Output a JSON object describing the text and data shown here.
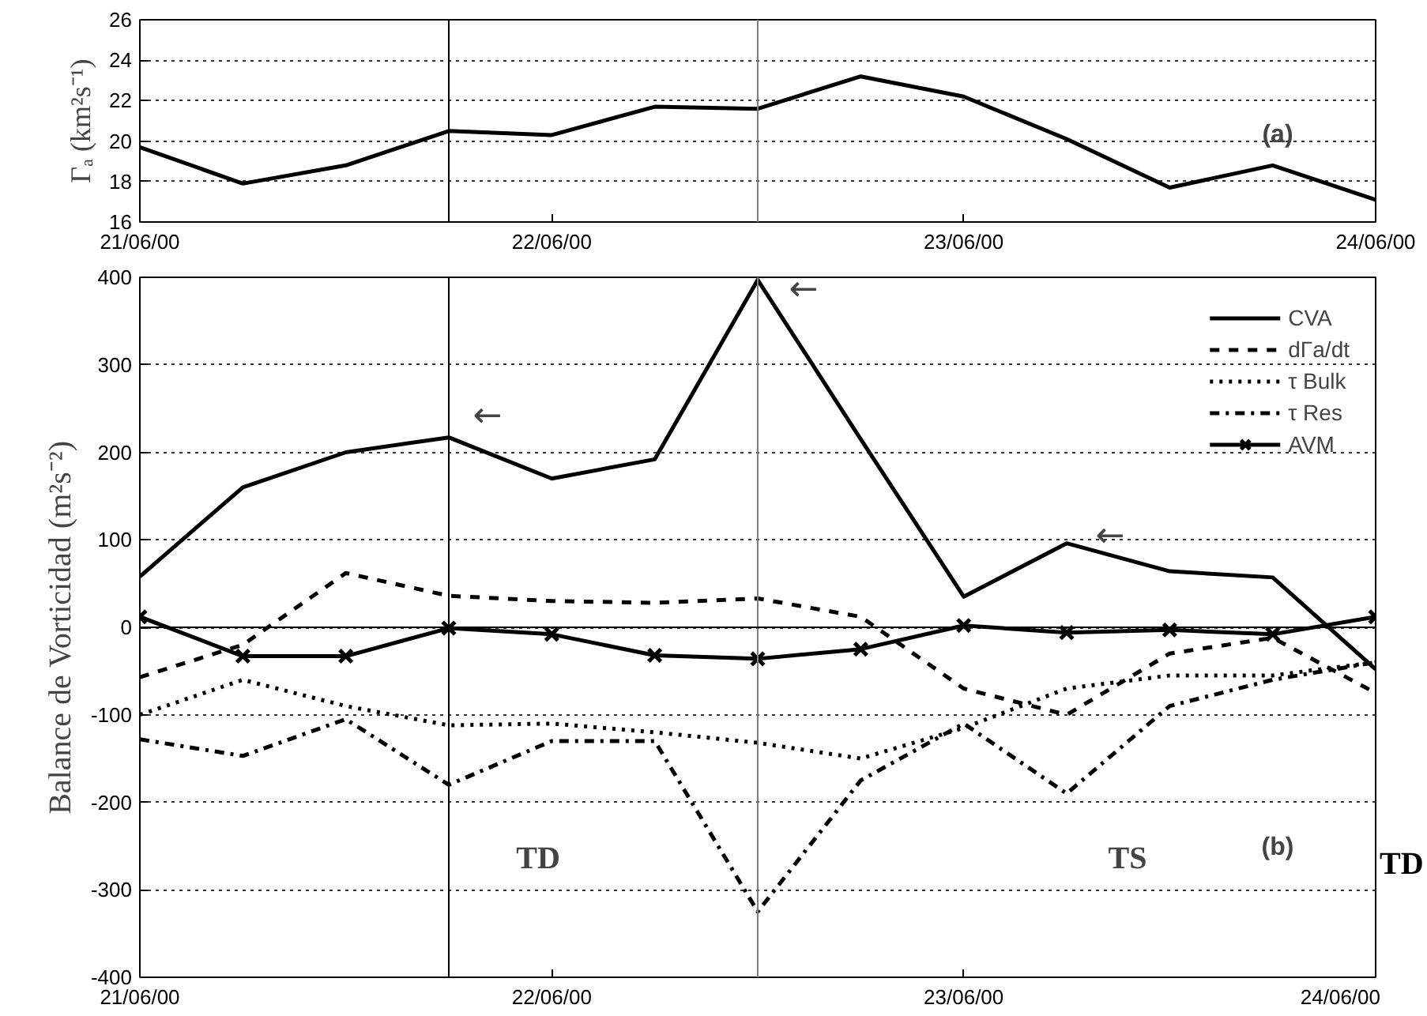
{
  "chart_data": [
    {
      "type": "line",
      "ylabel": "Γₐ (km²s⁻¹)",
      "x": [
        "2000-06-21T00:00",
        "2000-06-21T06:00",
        "2000-06-21T12:00",
        "2000-06-21T18:00",
        "2000-06-22T00:00",
        "2000-06-22T06:00",
        "2000-06-22T12:00",
        "2000-06-22T18:00",
        "2000-06-23T00:00",
        "2000-06-23T06:00",
        "2000-06-23T12:00",
        "2000-06-23T18:00",
        "2000-06-24T00:00"
      ],
      "series": [
        {
          "color": "#000000",
          "line_style": "solid",
          "values": [
            19.7,
            17.9,
            18.8,
            20.5,
            20.3,
            21.7,
            21.6,
            23.2,
            22.2,
            20.1,
            17.7,
            18.8,
            17.1
          ]
        }
      ],
      "xlim": [
        "2000-06-21T00:00",
        "2000-06-24T00:00"
      ],
      "xticks": [
        {
          "value": "2000-06-21T00:00",
          "label": "21/06/00"
        },
        {
          "value": "2000-06-22T00:00",
          "label": "22/06/00"
        },
        {
          "value": "2000-06-23T00:00",
          "label": "23/06/00"
        },
        {
          "value": "2000-06-24T00:00",
          "label": "24/06/00"
        }
      ],
      "ylim": [
        16,
        26
      ],
      "yticks": [
        16,
        18,
        20,
        22,
        24,
        26
      ],
      "grid": "y",
      "ref_lines": [
        {
          "axis": "x",
          "value": "2000-06-21T18:00",
          "color": "#000000"
        },
        {
          "axis": "x",
          "value": "2000-06-22T12:00",
          "color": "#808080"
        }
      ],
      "annotations": [
        "(a)"
      ]
    },
    {
      "type": "line",
      "ylabel": "Balance de Vorticidad (m²s⁻²)",
      "x": [
        "2000-06-21T00:00",
        "2000-06-21T06:00",
        "2000-06-21T12:00",
        "2000-06-21T18:00",
        "2000-06-22T00:00",
        "2000-06-22T06:00",
        "2000-06-22T12:00",
        "2000-06-22T18:00",
        "2000-06-23T00:00",
        "2000-06-23T06:00",
        "2000-06-23T12:00",
        "2000-06-23T18:00",
        "2000-06-24T00:00"
      ],
      "series": [
        {
          "name": "CVA",
          "color": "#000000",
          "line_style": "solid",
          "values": [
            58,
            160,
            200,
            217,
            170,
            192,
            397,
            215,
            35,
            96,
            64,
            57,
            -48
          ]
        },
        {
          "name": "dΓa/dt",
          "color": "#000000",
          "line_style": "dashed",
          "values": [
            -57,
            -20,
            62,
            36,
            30,
            28,
            33,
            12,
            -70,
            -100,
            -30,
            -12,
            -75
          ]
        },
        {
          "name": "τ Bulk",
          "color": "#000000",
          "line_style": "dotted",
          "values": [
            -100,
            -60,
            -90,
            -112,
            -110,
            -120,
            -132,
            -150,
            -115,
            -70,
            -55,
            -55,
            -40
          ]
        },
        {
          "name": "τ Res",
          "color": "#000000",
          "line_style": "dashdot",
          "values": [
            -128,
            -147,
            -105,
            -180,
            -130,
            -130,
            -325,
            -175,
            -110,
            -190,
            -90,
            -60,
            -40
          ]
        },
        {
          "name": "AVM",
          "color": "#000000",
          "line_style": "solid",
          "marker": "cross",
          "values": [
            12,
            -33,
            -33,
            -1,
            -8,
            -32,
            -36,
            -25,
            2,
            -6,
            -3,
            -8,
            12
          ]
        }
      ],
      "xlim": [
        "2000-06-21T00:00",
        "2000-06-24T00:00"
      ],
      "xticks": [
        {
          "value": "2000-06-21T00:00",
          "label": "21/06/00"
        },
        {
          "value": "2000-06-22T00:00",
          "label": "22/06/00"
        },
        {
          "value": "2000-06-23T00:00",
          "label": "23/06/00"
        },
        {
          "value": "2000-06-24T00:00",
          "label": "24/06/00"
        }
      ],
      "ylim": [
        -400,
        400
      ],
      "yticks": [
        -400,
        -300,
        -200,
        -100,
        0,
        100,
        200,
        300,
        400
      ],
      "grid": "y",
      "legend": "top right",
      "ref_lines": [
        {
          "axis": "x",
          "value": "2000-06-21T18:00",
          "color": "#000000"
        },
        {
          "axis": "x",
          "value": "2000-06-22T12:00",
          "color": "#808080"
        },
        {
          "axis": "y",
          "value": 0,
          "color": "#000000"
        }
      ],
      "annotations": [
        "←",
        "←",
        "←",
        "TD",
        "TS",
        "(b)",
        "TD"
      ]
    }
  ]
}
